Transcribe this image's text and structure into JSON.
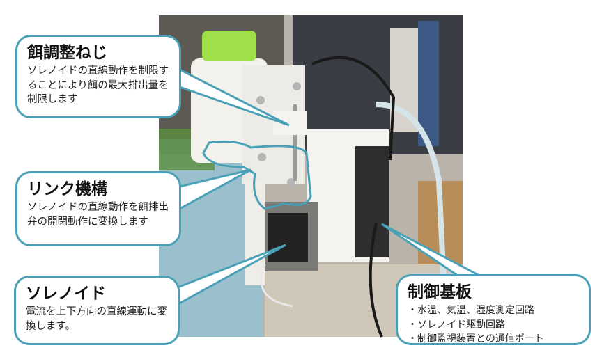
{
  "callouts": {
    "feed_screw": {
      "title": "餌調整ねじ",
      "description": "ソレノイドの直線動作を制限することにより餌の最大排出量を制限します"
    },
    "link_mechanism": {
      "title": "リンク機構",
      "description": "ソレノイドの直線動作を餌排出弁の開閉動作に変換します"
    },
    "solenoid": {
      "title": "ソレノイド",
      "description": "電流を上下方向の直線運動に変換します。"
    },
    "control_board": {
      "title": "制御基板",
      "items": [
        "水温、気温、湿度測定回路",
        "ソレノイド駆動回路",
        "制御監視装置との通信ポート"
      ]
    }
  },
  "colors": {
    "callout_border": "#4aa1b7",
    "highlight_outline": "#4aa1b7"
  }
}
